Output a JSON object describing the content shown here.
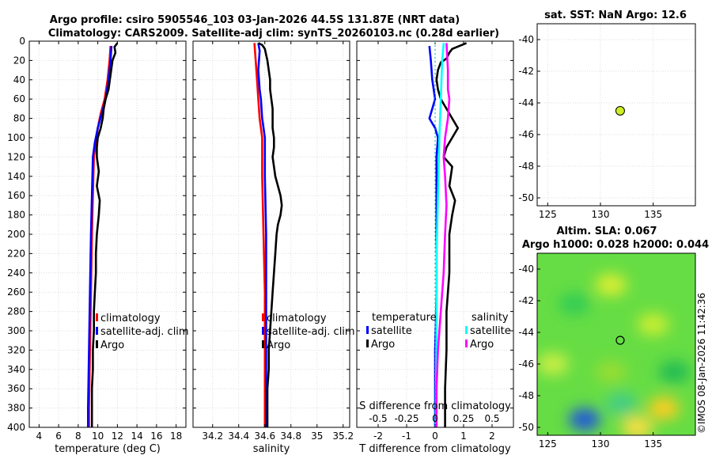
{
  "title": {
    "line1": "Argo profile: csiro 5905546_103 03-Jan-2026 44.5S 131.87E (NRT data)",
    "line2": "Climatology: CARS2009. Satellite-adj clim: synTS_20260103.nc (0.28d earlier)"
  },
  "colors": {
    "clim": "#ff0000",
    "sat": "#0000ff",
    "argo": "#000000",
    "cyan": "#00ffff",
    "magenta": "#ff00ff",
    "grid": "#dddddd"
  },
  "chart_data": [
    {
      "type": "line",
      "id": "temp",
      "xlabel": "temperature (deg C)",
      "xlim": [
        3,
        19
      ],
      "ylim": [
        0,
        400
      ],
      "y_reversed": true,
      "xticks": [
        4,
        6,
        8,
        10,
        12,
        14,
        16,
        18
      ],
      "yticks": [
        0,
        20,
        40,
        60,
        80,
        100,
        120,
        140,
        160,
        180,
        200,
        220,
        240,
        260,
        280,
        300,
        320,
        340,
        360,
        380,
        400
      ],
      "legend": {
        "entries": [
          "climatology",
          "satellite-adj. clim",
          "Argo"
        ]
      },
      "series": [
        {
          "name": "climatology",
          "color": "#ff0000",
          "points": [
            [
              11.3,
              5
            ],
            [
              11.2,
              20
            ],
            [
              11.0,
              40
            ],
            [
              10.7,
              60
            ],
            [
              10.3,
              75
            ],
            [
              10.0,
              90
            ],
            [
              9.8,
              105
            ],
            [
              9.6,
              120
            ],
            [
              9.5,
              160
            ],
            [
              9.4,
              200
            ],
            [
              9.3,
              260
            ],
            [
              9.2,
              320
            ],
            [
              9.1,
              380
            ],
            [
              9.1,
              400
            ]
          ]
        },
        {
          "name": "satellite-adj. clim",
          "color": "#0000ff",
          "points": [
            [
              11.4,
              5
            ],
            [
              11.3,
              20
            ],
            [
              11.1,
              40
            ],
            [
              10.8,
              60
            ],
            [
              10.4,
              75
            ],
            [
              10.0,
              90
            ],
            [
              9.7,
              105
            ],
            [
              9.5,
              120
            ],
            [
              9.4,
              160
            ],
            [
              9.3,
              200
            ],
            [
              9.2,
              260
            ],
            [
              9.1,
              320
            ],
            [
              9.0,
              380
            ],
            [
              9.0,
              400
            ]
          ]
        },
        {
          "name": "Argo",
          "color": "#000000",
          "points": [
            [
              12.0,
              2
            ],
            [
              11.7,
              6
            ],
            [
              11.8,
              12
            ],
            [
              11.5,
              20
            ],
            [
              11.3,
              35
            ],
            [
              11.1,
              50
            ],
            [
              10.8,
              60
            ],
            [
              10.6,
              70
            ],
            [
              10.5,
              80
            ],
            [
              10.3,
              90
            ],
            [
              10.0,
              100
            ],
            [
              9.9,
              110
            ],
            [
              9.9,
              120
            ],
            [
              10.1,
              135
            ],
            [
              9.9,
              150
            ],
            [
              10.2,
              165
            ],
            [
              10.1,
              180
            ],
            [
              9.9,
              200
            ],
            [
              9.8,
              220
            ],
            [
              9.8,
              240
            ],
            [
              9.7,
              260
            ],
            [
              9.6,
              280
            ],
            [
              9.6,
              300
            ],
            [
              9.5,
              320
            ],
            [
              9.5,
              340
            ],
            [
              9.4,
              360
            ],
            [
              9.4,
              380
            ],
            [
              9.4,
              400
            ]
          ]
        }
      ]
    },
    {
      "type": "line",
      "id": "sal",
      "xlabel": "salinity",
      "xlim": [
        34.05,
        35.25
      ],
      "ylim": [
        0,
        400
      ],
      "y_reversed": true,
      "xticks": [
        34.2,
        34.4,
        34.6,
        34.8,
        35,
        35.2
      ],
      "xtick_labels": [
        "34.2",
        "34.4",
        "34.6",
        "34.8",
        "35",
        "35.2"
      ],
      "legend": {
        "entries": [
          "climatology",
          "satellite-adj. clim",
          "Argo"
        ]
      },
      "series": [
        {
          "name": "climatology",
          "color": "#ff0000",
          "points": [
            [
              34.52,
              2
            ],
            [
              34.53,
              20
            ],
            [
              34.54,
              40
            ],
            [
              34.55,
              60
            ],
            [
              34.56,
              80
            ],
            [
              34.58,
              100
            ],
            [
              34.58,
              140
            ],
            [
              34.59,
              200
            ],
            [
              34.6,
              260
            ],
            [
              34.6,
              320
            ],
            [
              34.6,
              380
            ],
            [
              34.6,
              400
            ]
          ]
        },
        {
          "name": "satellite-adj. clim",
          "color": "#0000ff",
          "points": [
            [
              34.55,
              2
            ],
            [
              34.56,
              10
            ],
            [
              34.55,
              30
            ],
            [
              34.56,
              50
            ],
            [
              34.57,
              60
            ],
            [
              34.58,
              80
            ],
            [
              34.6,
              100
            ],
            [
              34.6,
              140
            ],
            [
              34.61,
              200
            ],
            [
              34.61,
              260
            ],
            [
              34.61,
              320
            ],
            [
              34.61,
              380
            ],
            [
              34.61,
              400
            ]
          ]
        },
        {
          "name": "Argo",
          "color": "#000000",
          "points": [
            [
              34.55,
              2
            ],
            [
              34.58,
              4
            ],
            [
              34.6,
              8
            ],
            [
              34.62,
              20
            ],
            [
              34.63,
              30
            ],
            [
              34.64,
              40
            ],
            [
              34.64,
              50
            ],
            [
              34.65,
              60
            ],
            [
              34.66,
              70
            ],
            [
              34.66,
              80
            ],
            [
              34.66,
              90
            ],
            [
              34.67,
              100
            ],
            [
              34.67,
              110
            ],
            [
              34.66,
              120
            ],
            [
              34.67,
              130
            ],
            [
              34.68,
              140
            ],
            [
              34.7,
              150
            ],
            [
              34.72,
              160
            ],
            [
              34.73,
              170
            ],
            [
              34.72,
              180
            ],
            [
              34.7,
              190
            ],
            [
              34.69,
              200
            ],
            [
              34.68,
              220
            ],
            [
              34.67,
              240
            ],
            [
              34.66,
              260
            ],
            [
              34.65,
              280
            ],
            [
              34.64,
              300
            ],
            [
              34.63,
              320
            ],
            [
              34.63,
              340
            ],
            [
              34.62,
              360
            ],
            [
              34.62,
              380
            ],
            [
              34.62,
              400
            ]
          ]
        }
      ]
    },
    {
      "type": "line",
      "id": "diff",
      "xlabel": "T difference from climatology",
      "top_label": "S difference from climatology",
      "xlim": [
        -2.75,
        2.75
      ],
      "ylim": [
        0,
        400
      ],
      "y_reversed": true,
      "xticks": [
        -2,
        -1,
        0,
        1,
        2
      ],
      "top_ticks": [
        -0.5,
        -0.25,
        0,
        0.25,
        0.5
      ],
      "top_tick_labels": [
        "-0.5",
        "-0.25",
        "0",
        "0.25",
        "0.5"
      ],
      "s_scale": 4,
      "legend": {
        "headers": [
          "temperature",
          "salinity"
        ],
        "temperature_entries": [
          "satellite",
          "Argo"
        ],
        "salinity_entries": [
          "satellite",
          "Argo"
        ]
      },
      "series": [
        {
          "name": "temperature satellite",
          "color": "#0000ff",
          "points": [
            [
              -0.2,
              5
            ],
            [
              -0.15,
              20
            ],
            [
              -0.1,
              40
            ],
            [
              0.0,
              60
            ],
            [
              -0.1,
              70
            ],
            [
              -0.2,
              80
            ],
            [
              0.0,
              90
            ],
            [
              0.1,
              100
            ],
            [
              0.05,
              120
            ],
            [
              0.05,
              160
            ],
            [
              0.05,
              200
            ],
            [
              0.05,
              260
            ],
            [
              0.0,
              320
            ],
            [
              0.0,
              400
            ]
          ]
        },
        {
          "name": "temperature Argo",
          "color": "#000000",
          "points": [
            [
              1.1,
              2
            ],
            [
              0.6,
              8
            ],
            [
              0.5,
              12
            ],
            [
              0.4,
              18
            ],
            [
              0.2,
              22
            ],
            [
              0.1,
              30
            ],
            [
              0.05,
              40
            ],
            [
              0.1,
              50
            ],
            [
              0.2,
              60
            ],
            [
              0.4,
              70
            ],
            [
              0.6,
              80
            ],
            [
              0.8,
              90
            ],
            [
              0.6,
              100
            ],
            [
              0.4,
              110
            ],
            [
              0.3,
              120
            ],
            [
              0.6,
              130
            ],
            [
              0.5,
              150
            ],
            [
              0.7,
              165
            ],
            [
              0.6,
              180
            ],
            [
              0.5,
              200
            ],
            [
              0.5,
              240
            ],
            [
              0.4,
              280
            ],
            [
              0.4,
              320
            ],
            [
              0.35,
              360
            ],
            [
              0.35,
              400
            ]
          ]
        },
        {
          "name": "salinity satellite",
          "color": "#00ffff",
          "points": [
            [
              0.3,
              2
            ],
            [
              0.25,
              20
            ],
            [
              0.2,
              60
            ],
            [
              0.15,
              100
            ],
            [
              0.1,
              160
            ],
            [
              0.05,
              220
            ],
            [
              0.05,
              300
            ],
            [
              0.02,
              400
            ]
          ]
        },
        {
          "name": "salinity Argo",
          "color": "#ff00ff",
          "points": [
            [
              0.4,
              2
            ],
            [
              0.45,
              30
            ],
            [
              0.45,
              50
            ],
            [
              0.5,
              60
            ],
            [
              0.45,
              80
            ],
            [
              0.35,
              100
            ],
            [
              0.3,
              120
            ],
            [
              0.35,
              140
            ],
            [
              0.4,
              170
            ],
            [
              0.35,
              200
            ],
            [
              0.3,
              240
            ],
            [
              0.2,
              280
            ],
            [
              0.1,
              320
            ],
            [
              0.05,
              360
            ],
            [
              0.05,
              400
            ]
          ]
        }
      ]
    },
    {
      "type": "scatter",
      "id": "sst",
      "title": "sat. SST: NaN Argo: 12.6",
      "xlim": [
        124,
        139
      ],
      "ylim": [
        -50.5,
        -39
      ],
      "xticks": [
        125,
        130,
        135
      ],
      "yticks": [
        -40,
        -42,
        -44,
        -46,
        -48,
        -50
      ],
      "points": [
        {
          "x": 131.87,
          "y": -44.5,
          "color": "#ccee22"
        }
      ]
    },
    {
      "type": "heatmap",
      "id": "sla",
      "title1": "Altim. SLA: 0.067",
      "title2": "Argo h1000: 0.028 h2000: 0.044",
      "xlim": [
        124,
        139
      ],
      "ylim": [
        -50.5,
        -39
      ],
      "xticks": [
        125,
        130,
        135
      ],
      "yticks": [
        -40,
        -42,
        -44,
        -46,
        -48,
        -50
      ],
      "points": [
        {
          "x": 131.87,
          "y": -44.5
        }
      ],
      "patches": [
        {
          "x": 131,
          "y": -41,
          "color": "#ddee33"
        },
        {
          "x": 127.5,
          "y": -42.2,
          "color": "#33cc55"
        },
        {
          "x": 135,
          "y": -43.5,
          "color": "#ccee33"
        },
        {
          "x": 131,
          "y": -46.5,
          "color": "#99dd33"
        },
        {
          "x": 137,
          "y": -46.5,
          "color": "#22bb55"
        },
        {
          "x": 128.5,
          "y": -49.5,
          "color": "#2255dd"
        },
        {
          "x": 132,
          "y": -48.5,
          "color": "#44cc88"
        },
        {
          "x": 136,
          "y": -48.8,
          "color": "#ffcc22"
        },
        {
          "x": 125.5,
          "y": -46,
          "color": "#ccee44"
        },
        {
          "x": 133.5,
          "y": -50,
          "color": "#ffdd44"
        }
      ]
    }
  ],
  "watermark": "©IMOS 08-Jan-2026 11:42:36"
}
